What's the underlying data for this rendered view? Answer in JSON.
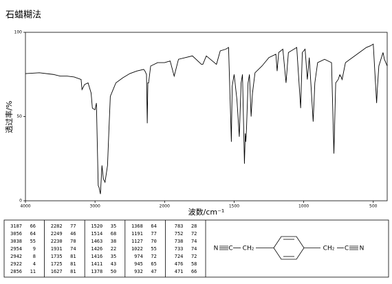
{
  "chart_data": {
    "type": "line",
    "title": "石蜡糊法",
    "x_label": "波数/cm⁻¹",
    "y_label": "透过率/%",
    "x": [
      4000,
      3800,
      3600,
      3500,
      3400,
      3300,
      3200,
      3187,
      3150,
      3100,
      3056,
      3038,
      3000,
      2980,
      2954,
      2942,
      2922,
      2900,
      2880,
      2856,
      2820,
      2800,
      2780,
      2700,
      2600,
      2500,
      2400,
      2300,
      2282,
      2260,
      2249,
      2240,
      2230,
      2200,
      2100,
      2000,
      1960,
      1931,
      1900,
      1800,
      1735,
      1725,
      1700,
      1627,
      1600,
      1560,
      1540,
      1520,
      1514,
      1500,
      1480,
      1463,
      1450,
      1440,
      1426,
      1420,
      1416,
      1411,
      1400,
      1390,
      1378,
      1368,
      1350,
      1300,
      1250,
      1200,
      1191,
      1180,
      1150,
      1127,
      1110,
      1050,
      1022,
      1010,
      990,
      974,
      960,
      945,
      932,
      920,
      900,
      850,
      800,
      783,
      770,
      752,
      740,
      738,
      733,
      724,
      700,
      650,
      600,
      550,
      520,
      500,
      476,
      471,
      460,
      430,
      420,
      400
    ],
    "values": [
      75.5,
      76,
      75,
      74,
      74,
      73.5,
      72,
      66,
      69,
      70,
      64,
      55,
      54,
      58,
      9,
      8,
      4,
      21,
      13,
      11,
      21,
      42,
      62,
      70,
      73,
      75.5,
      77,
      78,
      77,
      75,
      46,
      70,
      70,
      80,
      82,
      82,
      83,
      74,
      84,
      86,
      81,
      81,
      86,
      81,
      89,
      90,
      91,
      35,
      68,
      75,
      60,
      38,
      70,
      75,
      22,
      40,
      35,
      43,
      70,
      75,
      50,
      64,
      76,
      80,
      85,
      87,
      77,
      88,
      90,
      70,
      88,
      91,
      55,
      88,
      90,
      72,
      85,
      65,
      47,
      70,
      82,
      84,
      82,
      28,
      70,
      72,
      75,
      74,
      74,
      72,
      82,
      85,
      88,
      91,
      92,
      93,
      58,
      66,
      80,
      88,
      84,
      80
    ],
    "color": "#000000",
    "xlim": [
      4000,
      400
    ],
    "x_scale_break": 2000,
    "xticks": [
      4000,
      3000,
      2000,
      1500,
      1000,
      500
    ],
    "ylim": [
      0,
      100
    ],
    "yticks": [
      0,
      50,
      100
    ]
  },
  "table": {
    "columns": [
      [
        [
          3187,
          66
        ],
        [
          3056,
          64
        ],
        [
          3038,
          55
        ],
        [
          2954,
          9
        ],
        [
          2942,
          8
        ],
        [
          2922,
          4
        ],
        [
          2856,
          11
        ]
      ],
      [
        [
          2282,
          77
        ],
        [
          2249,
          46
        ],
        [
          2230,
          70
        ],
        [
          1931,
          74
        ],
        [
          1735,
          81
        ],
        [
          1725,
          81
        ],
        [
          1627,
          81
        ]
      ],
      [
        [
          1520,
          35
        ],
        [
          1514,
          68
        ],
        [
          1463,
          38
        ],
        [
          1426,
          22
        ],
        [
          1416,
          35
        ],
        [
          1411,
          43
        ],
        [
          1378,
          50
        ]
      ],
      [
        [
          1368,
          64
        ],
        [
          1191,
          77
        ],
        [
          1127,
          70
        ],
        [
          1022,
          55
        ],
        [
          974,
          72
        ],
        [
          945,
          65
        ],
        [
          932,
          47
        ]
      ],
      [
        [
          783,
          28
        ],
        [
          752,
          72
        ],
        [
          738,
          74
        ],
        [
          733,
          74
        ],
        [
          724,
          72
        ],
        [
          476,
          58
        ],
        [
          471,
          66
        ]
      ]
    ]
  },
  "structure": {
    "labels": [
      "N",
      "C",
      "CH₂",
      "CH₂",
      "C",
      "N"
    ]
  }
}
